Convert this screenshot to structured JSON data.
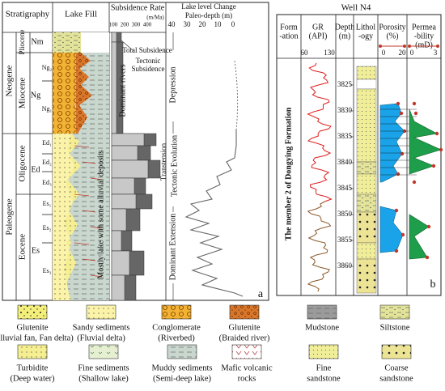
{
  "panel_a": {
    "headers": {
      "stratigraphy": "Stratigraphy",
      "lake_fill": "Lake Fill",
      "subsidence": "Subsidence Rate",
      "subsidence_unit": "(m/Ma)",
      "lake_level": "Lake level Change",
      "paleo_depth": "Paleo-depth (m)"
    },
    "subsidence_ticks": [
      "100",
      "200",
      "300",
      "400"
    ],
    "paleo_ticks": [
      "40",
      "30",
      "20",
      "10",
      "0"
    ],
    "eras": [
      "Neogene",
      "Paleogene"
    ],
    "epochs": [
      "Pliocene",
      "Miocene",
      "Oligocene",
      "Eocene"
    ],
    "formations": [
      "Nm",
      "Ng",
      "Ed",
      "Es"
    ],
    "members": [
      "Ng₂",
      "Ng₁",
      "Ed₁",
      "Ed₂",
      "Ed₃",
      "Es₁",
      "Es₂",
      "Es₃"
    ],
    "subsidence_legend": [
      "Total Subsidence",
      [
        "Tectonic",
        "Subsidence"
      ]
    ],
    "annotations": [
      "Dominant rivers",
      "Mostly lake with some alluvial deposits",
      "Depression",
      "Transtension",
      "Tectonic Evolution",
      "Dominant Extension"
    ],
    "label": "a"
  },
  "panel_b": {
    "title": "Well N4",
    "headers": [
      [
        "Form",
        "-ation"
      ],
      [
        "GR",
        "(API)"
      ],
      [
        "Depth",
        "(m)"
      ],
      [
        "Lithol",
        "-ogy"
      ],
      [
        "Porosity",
        "(%)"
      ],
      [
        "Permea",
        "-bility",
        "(mD)"
      ]
    ],
    "gr_ticks": [
      "60",
      "130"
    ],
    "depth_ticks": [
      "3825",
      "3830",
      "3835",
      "3840",
      "3845",
      "3850",
      "3855",
      "3860"
    ],
    "porosity_ticks": [
      "0",
      "20"
    ],
    "permeability_ticks": [
      "0",
      "3"
    ],
    "formation": "The member 2 of Dongying Formation",
    "label": "b"
  },
  "legend": [
    [
      "Glutenite",
      "(Alluvial fan, Fan delta)"
    ],
    [
      "Sandy sediments",
      "(Fluvial delta)"
    ],
    [
      "Conglomerate",
      "(Riverbed)"
    ],
    [
      "Glutenite",
      "(Braided river)"
    ],
    [
      "Mudstone"
    ],
    [
      "Siltstone"
    ],
    [
      "Turbidite",
      "(Deep water)"
    ],
    [
      "Fine sediments",
      "(Shallow lake)"
    ],
    [
      "Muddy sediments",
      "(Semi-deep lake)"
    ],
    [
      "Mafic volcanic",
      "rocks"
    ],
    [
      "Fine",
      "sandstone"
    ],
    [
      "Coarse",
      "sandstone"
    ]
  ]
}
